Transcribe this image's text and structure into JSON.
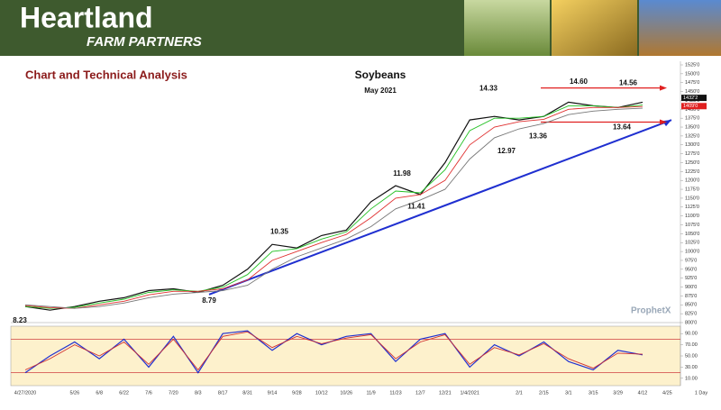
{
  "header": {
    "brand": "Heartland",
    "sub": "FARM PARTNERS"
  },
  "page_title": "Chart and Technical Analysis",
  "watermark": "ProphetX",
  "interval": "1 Day",
  "chart_data": [
    {
      "type": "line",
      "title": "Soybeans",
      "subtitle": "May 2021",
      "categories": [
        "4/27/2020",
        null,
        "5/26",
        "6/8",
        "6/22",
        "7/6",
        "7/20",
        "8/3",
        "8/17",
        "8/31",
        "9/14",
        "9/28",
        "10/12",
        "10/26",
        "11/9",
        "11/23",
        "12/7",
        "12/21",
        "1/4/2021",
        null,
        "2/1",
        "2/15",
        "3/1",
        "3/15",
        "3/29",
        "4/12",
        "4/25"
      ],
      "series": [
        {
          "color": "#111111",
          "values": [
            845,
            835,
            845,
            860,
            870,
            890,
            895,
            885,
            905,
            950,
            1020,
            1010,
            1045,
            1060,
            1140,
            1185,
            1160,
            1250,
            1370,
            1380,
            1370,
            1380,
            1420,
            1410,
            1405,
            1420,
            null
          ]
        },
        {
          "color": "#22c022",
          "values": [
            845,
            840,
            843,
            855,
            866,
            885,
            892,
            888,
            900,
            935,
            1000,
            1008,
            1035,
            1055,
            1120,
            1170,
            1165,
            1230,
            1340,
            1375,
            1375,
            1380,
            1410,
            1410,
            1405,
            1412,
            null
          ]
        },
        {
          "color": "#e03030",
          "values": [
            848,
            842,
            840,
            850,
            860,
            878,
            888,
            888,
            895,
            920,
            975,
            1000,
            1025,
            1048,
            1095,
            1150,
            1160,
            1200,
            1300,
            1350,
            1365,
            1372,
            1400,
            1405,
            1405,
            1408,
            null
          ]
        },
        {
          "color": "#777777",
          "values": [
            850,
            845,
            840,
            845,
            855,
            870,
            880,
            885,
            890,
            905,
            950,
            985,
            1010,
            1035,
            1070,
            1120,
            1145,
            1175,
            1260,
            1320,
            1345,
            1360,
            1385,
            1395,
            1400,
            1403,
            null
          ]
        }
      ],
      "annotations": [
        {
          "value": 823,
          "label": "8.23"
        },
        {
          "value": 879,
          "label": "8.79"
        },
        {
          "value": 1035,
          "label": "10.35"
        },
        {
          "value": 1198,
          "label": "11.98"
        },
        {
          "value": 1141,
          "label": "11.41"
        },
        {
          "value": 1433,
          "label": "14.33"
        },
        {
          "value": 1297,
          "label": "12.97"
        },
        {
          "value": 1336,
          "label": "13.36"
        },
        {
          "value": 1460,
          "label": "14.60"
        },
        {
          "value": 1456,
          "label": "14.56"
        },
        {
          "value": 1364,
          "label": "13.64"
        }
      ],
      "resistance": {
        "color": "#e02020",
        "values": [
          1460,
          1364
        ]
      },
      "trendline": {
        "color": "#1f2fd0",
        "values": [
          879,
          1370
        ]
      },
      "price_tags": [
        {
          "value": 1432.25,
          "label": "1432'2",
          "color": "#111111"
        },
        {
          "value": 1409,
          "label": "1409'0",
          "color": "#e02020"
        }
      ],
      "ylim": [
        800,
        1525
      ],
      "yticks": [
        {
          "value": 800,
          "label": "800'0"
        },
        {
          "value": 825,
          "label": "825'0"
        },
        {
          "value": 850,
          "label": "850'0"
        },
        {
          "value": 875,
          "label": "875'0"
        },
        {
          "value": 900,
          "label": "900'0"
        },
        {
          "value": 925,
          "label": "925'0"
        },
        {
          "value": 950,
          "label": "950'0"
        },
        {
          "value": 975,
          "label": "975'0"
        },
        {
          "value": 1000,
          "label": "1000'0"
        },
        {
          "value": 1025,
          "label": "1025'0"
        },
        {
          "value": 1050,
          "label": "1050'0"
        },
        {
          "value": 1075,
          "label": "1075'0"
        },
        {
          "value": 1100,
          "label": "1100'0"
        },
        {
          "value": 1125,
          "label": "1125'0"
        },
        {
          "value": 1150,
          "label": "1150'0"
        },
        {
          "value": 1175,
          "label": "1175'0"
        },
        {
          "value": 1200,
          "label": "1200'0"
        },
        {
          "value": 1225,
          "label": "1225'0"
        },
        {
          "value": 1250,
          "label": "1250'0"
        },
        {
          "value": 1275,
          "label": "1275'0"
        },
        {
          "value": 1300,
          "label": "1300'0"
        },
        {
          "value": 1325,
          "label": "1325'0"
        },
        {
          "value": 1350,
          "label": "1350'0"
        },
        {
          "value": 1375,
          "label": "1375'0"
        },
        {
          "value": 1400,
          "label": "1400'0"
        },
        {
          "value": 1425,
          "label": "1425'0"
        },
        {
          "value": 1450,
          "label": "1450'0"
        },
        {
          "value": 1475,
          "label": "1475'0"
        },
        {
          "value": 1500,
          "label": "1500'0"
        },
        {
          "value": 1525,
          "label": "1525'0"
        }
      ]
    },
    {
      "type": "line",
      "series": [
        {
          "color": "#2030d0",
          "values": [
            20,
            50,
            75,
            45,
            80,
            30,
            85,
            20,
            90,
            95,
            60,
            90,
            70,
            85,
            90,
            40,
            80,
            90,
            30,
            70,
            50,
            75,
            40,
            25,
            60,
            52,
            null
          ]
        },
        {
          "color": "#d03030",
          "values": [
            25,
            45,
            70,
            50,
            75,
            35,
            80,
            25,
            85,
            93,
            65,
            85,
            72,
            82,
            88,
            45,
            75,
            88,
            35,
            65,
            52,
            72,
            45,
            28,
            55,
            53,
            null
          ]
        }
      ],
      "bands": [
        20,
        80
      ],
      "ylim": [
        0,
        100
      ],
      "yticks": [
        {
          "value": 10,
          "label": "10.00"
        },
        {
          "value": 30,
          "label": "30.00"
        },
        {
          "value": 50,
          "label": "50.00"
        },
        {
          "value": 70,
          "label": "70.00"
        },
        {
          "value": 90,
          "label": "90.00"
        }
      ]
    }
  ]
}
